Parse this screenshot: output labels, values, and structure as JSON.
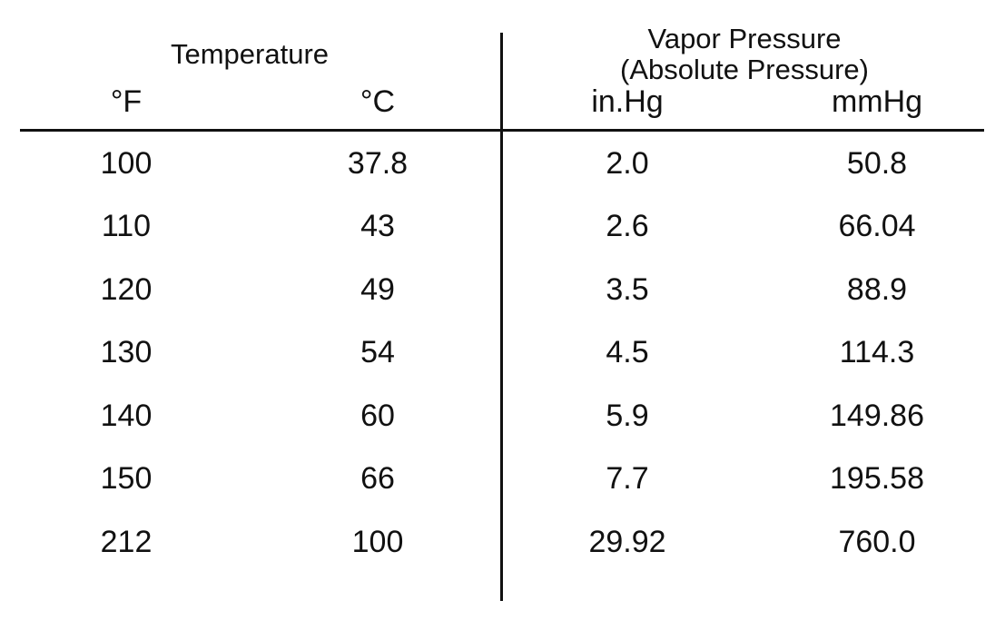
{
  "table": {
    "group_headers": {
      "temperature": "Temperature",
      "vapor_pressure_line1": "Vapor Pressure",
      "vapor_pressure_line2": "(Absolute Pressure)"
    },
    "unit_headers": [
      "°F",
      "°C",
      "in.Hg",
      "mmHg"
    ],
    "rows": [
      [
        "100",
        "37.8",
        "2.0",
        "50.8"
      ],
      [
        "110",
        "43",
        "2.6",
        "66.04"
      ],
      [
        "120",
        "49",
        "3.5",
        "88.9"
      ],
      [
        "130",
        "54",
        "4.5",
        "114.3"
      ],
      [
        "140",
        "60",
        "5.9",
        "149.86"
      ],
      [
        "150",
        "66",
        "7.7",
        "195.58"
      ],
      [
        "212",
        "100",
        "29.92",
        "760.0"
      ]
    ]
  }
}
